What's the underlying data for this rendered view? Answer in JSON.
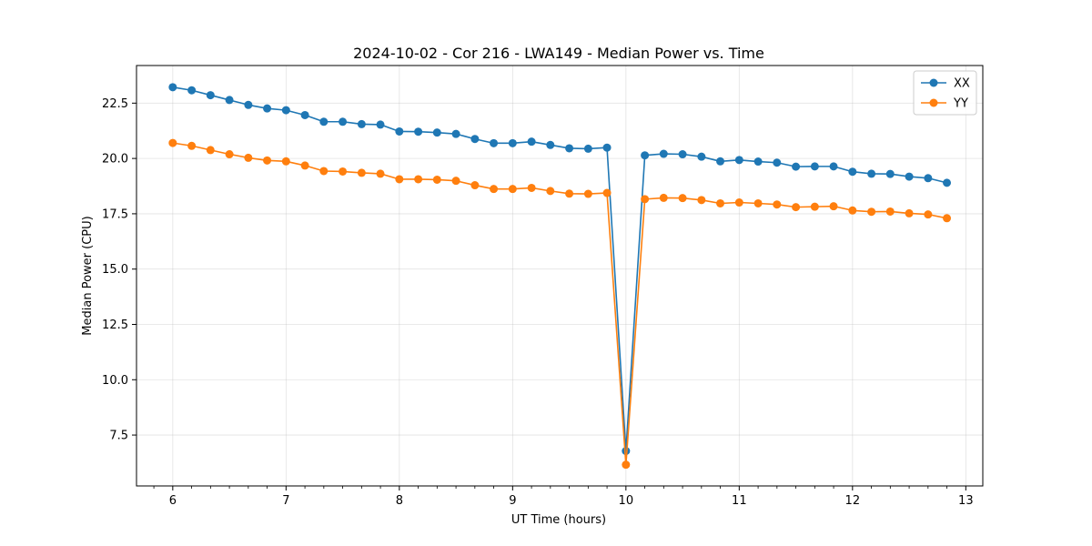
{
  "chart_data": {
    "type": "line",
    "title": "2024-10-02 - Cor 216 - LWA149 - Median Power vs. Time",
    "xlabel": "UT Time (hours)",
    "ylabel": "Median Power (CPU)",
    "xlim": [
      5.68,
      13.15
    ],
    "ylim": [
      5.2,
      24.2
    ],
    "xticks": [
      6,
      7,
      8,
      9,
      10,
      11,
      12,
      13
    ],
    "yticks": [
      7.5,
      10.0,
      12.5,
      15.0,
      17.5,
      20.0,
      22.5
    ],
    "ytick_labels": [
      "7.5",
      "10.0",
      "12.5",
      "15.0",
      "17.5",
      "20.0",
      "22.5"
    ],
    "grid": true,
    "legend": "top-right",
    "x": [
      6.0,
      6.167,
      6.333,
      6.5,
      6.667,
      6.833,
      7.0,
      7.167,
      7.333,
      7.5,
      7.667,
      7.833,
      8.0,
      8.167,
      8.333,
      8.5,
      8.667,
      8.833,
      9.0,
      9.167,
      9.333,
      9.5,
      9.667,
      9.833,
      10.0,
      10.167,
      10.333,
      10.5,
      10.667,
      10.833,
      11.0,
      11.167,
      11.333,
      11.5,
      11.667,
      11.833,
      12.0,
      12.167,
      12.333,
      12.5,
      12.667,
      12.833
    ],
    "series": [
      {
        "name": "XX",
        "color": "#1f77b4",
        "values": [
          23.22,
          23.08,
          22.86,
          22.64,
          22.42,
          22.26,
          22.18,
          21.96,
          21.66,
          21.66,
          21.55,
          21.53,
          21.22,
          21.21,
          21.17,
          21.11,
          20.88,
          20.69,
          20.69,
          20.76,
          20.61,
          20.46,
          20.44,
          20.49,
          6.78,
          20.14,
          20.21,
          20.19,
          20.08,
          19.87,
          19.93,
          19.86,
          19.81,
          19.63,
          19.64,
          19.64,
          19.4,
          19.31,
          19.3,
          19.18,
          19.11,
          18.9
        ]
      },
      {
        "name": "YY",
        "color": "#ff7f0e",
        "values": [
          20.7,
          20.57,
          20.38,
          20.19,
          20.03,
          19.91,
          19.87,
          19.68,
          19.43,
          19.41,
          19.35,
          19.31,
          19.06,
          19.06,
          19.04,
          18.99,
          18.79,
          18.62,
          18.62,
          18.67,
          18.53,
          18.41,
          18.4,
          18.44,
          6.16,
          18.16,
          18.22,
          18.21,
          18.12,
          17.97,
          18.01,
          17.97,
          17.92,
          17.8,
          17.82,
          17.84,
          17.65,
          17.59,
          17.6,
          17.52,
          17.47,
          17.3
        ]
      }
    ]
  }
}
